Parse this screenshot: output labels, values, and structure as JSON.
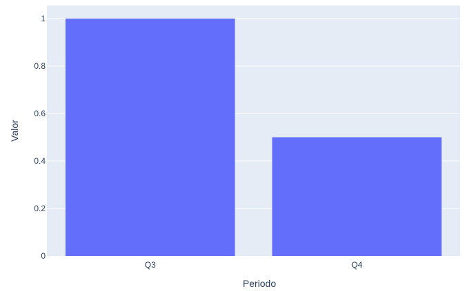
{
  "chart_data": {
    "type": "bar",
    "categories": [
      "Q3",
      "Q4"
    ],
    "values": [
      1,
      0.5
    ],
    "xlabel": "Periodo",
    "ylabel": "Valor",
    "ylim": [
      0,
      1.0
    ],
    "y_ticks": [
      0,
      0.2,
      0.4,
      0.6,
      0.8,
      1
    ],
    "y_tick_labels": [
      "0",
      "0.2",
      "0.4",
      "0.6",
      "0.8",
      "1"
    ],
    "grid": true,
    "legend": false
  },
  "colors": {
    "bar": "#636efa",
    "plot_background": "#e5ecf6",
    "grid": "#ffffff",
    "text": "#2a3f5f"
  }
}
